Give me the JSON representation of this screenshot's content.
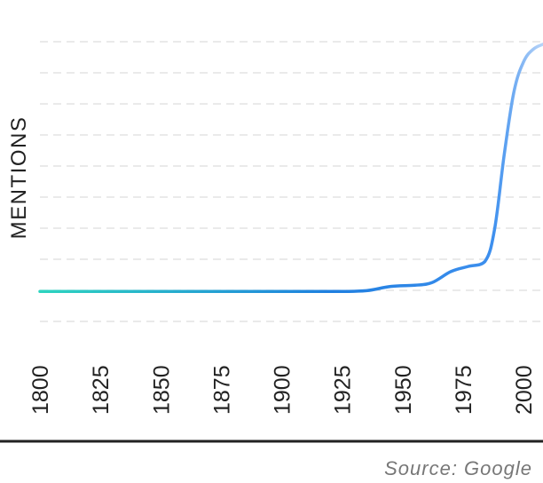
{
  "chart_data": {
    "type": "line",
    "title": "",
    "xlabel": "",
    "ylabel": "MENTIONS",
    "xlim": [
      1800,
      2008
    ],
    "ylim": [
      -12,
      100
    ],
    "x_ticks": [
      {
        "label": "1800",
        "value": 1800,
        "muted": false
      },
      {
        "label": "1825",
        "value": 1825,
        "muted": false
      },
      {
        "label": "1850",
        "value": 1850,
        "muted": false
      },
      {
        "label": "1875",
        "value": 1875,
        "muted": false
      },
      {
        "label": "1900",
        "value": 1900,
        "muted": false
      },
      {
        "label": "1925",
        "value": 1925,
        "muted": false
      },
      {
        "label": "1950",
        "value": 1950,
        "muted": false
      },
      {
        "label": "1975",
        "value": 1975,
        "muted": false
      },
      {
        "label": "2000",
        "value": 2000,
        "muted": true
      }
    ],
    "grid": true,
    "legend": "none",
    "series": [
      {
        "x": [
          1800,
          1825,
          1850,
          1875,
          1900,
          1925,
          1935,
          1945,
          1955,
          1962,
          1970,
          1977,
          1984,
          1988,
          1992,
          1996,
          2000,
          2004,
          2008
        ],
        "y": [
          0,
          0,
          0,
          0,
          0,
          0,
          0.3,
          2,
          2.5,
          3.5,
          8,
          10,
          12,
          25,
          55,
          80,
          92,
          97,
          99
        ]
      }
    ],
    "colors": {
      "line_start": "#2dd4bf",
      "line_mid": "#1f7fe0",
      "line_end": "#b8d4f8",
      "grid": "#dddddd",
      "baseline": "#222222",
      "text": "#222222",
      "muted_text": "#999999"
    }
  },
  "source": "Source: Google"
}
